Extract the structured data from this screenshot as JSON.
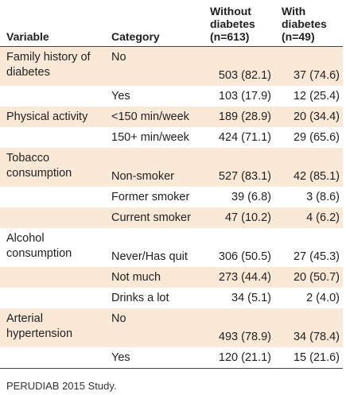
{
  "table": {
    "headers": {
      "variable": "Variable",
      "category": "Category",
      "without": [
        "Without",
        "diabetes",
        "(n=613)"
      ],
      "with": [
        "With",
        "diabetes",
        "(n=49)"
      ]
    },
    "rows": [
      {
        "variable": "Family history of diabetes",
        "category": "No",
        "without": "503 (82.1)",
        "with": "37 (74.6)"
      },
      {
        "variable": "",
        "category": "Yes",
        "without": "103 (17.9)",
        "with": "12 (25.4)"
      },
      {
        "variable": "Physical activity",
        "category": "<150 min/week",
        "without": "189 (28.9)",
        "with": "20 (34.4)"
      },
      {
        "variable": "",
        "category": "150+ min/week",
        "without": "424 (71.1)",
        "with": "29 (65.6)"
      },
      {
        "variable": "Tobacco consumption",
        "category": "Non-smoker",
        "without": "527 (83.1)",
        "with": "42 (85.1)"
      },
      {
        "variable": "",
        "category": "Former smoker",
        "without": "39 (6.8)",
        "with": "3 (8.6)"
      },
      {
        "variable": "",
        "category": "Current smoker",
        "without": "47 (10.2)",
        "with": "4 (6.2)"
      },
      {
        "variable": "Alcohol consumption",
        "category": "Never/Has quit",
        "without": "306 (50.5)",
        "with": "27 (45.3)"
      },
      {
        "variable": "",
        "category": "Not much",
        "without": "273 (44.4)",
        "with": "20 (50.7)"
      },
      {
        "variable": "",
        "category": "Drinks a lot",
        "without": "34 (5.1)",
        "with": "2 (4.0)"
      },
      {
        "variable": "Arterial hypertension",
        "category": "No",
        "without": "493 (78.9)",
        "with": "34 (78.4)"
      },
      {
        "variable": "",
        "category": "Yes",
        "without": "120 (21.1)",
        "with": "15 (21.6)"
      }
    ]
  },
  "footnote": "PERUDIAB 2015 Study."
}
